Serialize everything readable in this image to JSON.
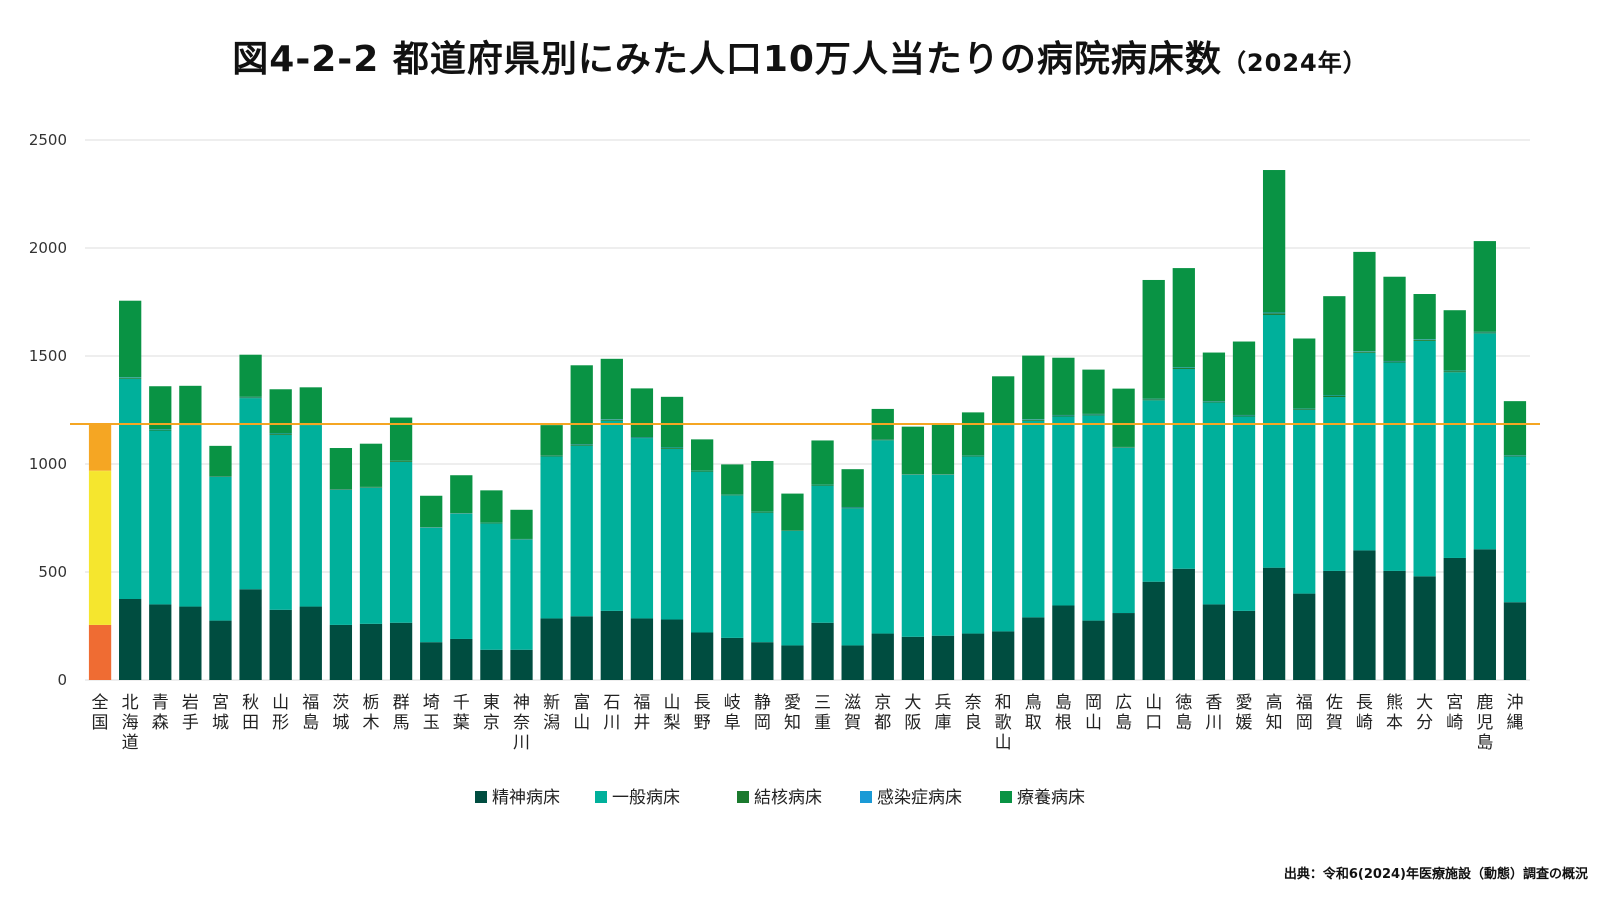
{
  "header": {
    "title": "図4-2-2 都道府県別にみた人口10万人当たりの病院病床数",
    "title_year": "（2024年）"
  },
  "footer": {
    "source": "出典：令和6(2024)年医療施設（動態）調査の概況"
  },
  "chart_data": {
    "type": "bar",
    "stacked": true,
    "ylim": [
      0,
      2500
    ],
    "yticks": [
      0,
      500,
      1000,
      1500,
      2000,
      2500
    ],
    "grid": true,
    "legend_position": "bottom",
    "reference_line": {
      "value": 1185,
      "color": "#f5a623"
    },
    "categories": [
      "全国",
      "北海道",
      "青森",
      "岩手",
      "宮城",
      "秋田",
      "山形",
      "福島",
      "茨城",
      "栃木",
      "群馬",
      "埼玉",
      "千葉",
      "東京",
      "神奈川",
      "新潟",
      "富山",
      "石川",
      "福井",
      "山梨",
      "長野",
      "岐阜",
      "静岡",
      "愛知",
      "三重",
      "滋賀",
      "京都",
      "大阪",
      "兵庫",
      "奈良",
      "和歌山",
      "鳥取",
      "島根",
      "岡山",
      "広島",
      "山口",
      "徳島",
      "香川",
      "愛媛",
      "高知",
      "福岡",
      "佐賀",
      "長崎",
      "熊本",
      "大分",
      "宮崎",
      "鹿児島",
      "沖縄"
    ],
    "series": [
      {
        "name": "精神病床",
        "color": "#004d40",
        "values": [
          255,
          375,
          350,
          340,
          275,
          420,
          325,
          340,
          255,
          260,
          265,
          175,
          190,
          140,
          140,
          285,
          295,
          320,
          285,
          280,
          220,
          195,
          175,
          160,
          265,
          160,
          215,
          200,
          205,
          215,
          225,
          290,
          345,
          275,
          310,
          455,
          515,
          350,
          320,
          520,
          400,
          505,
          600,
          505,
          480,
          565,
          605,
          360
        ]
      },
      {
        "name": "一般病床",
        "color": "#00b09b",
        "values": [
          710,
          1020,
          805,
          840,
          665,
          885,
          810,
          840,
          625,
          630,
          745,
          530,
          580,
          585,
          510,
          750,
          790,
          880,
          835,
          790,
          745,
          660,
          600,
          530,
          635,
          635,
          895,
          750,
          745,
          820,
          955,
          910,
          875,
          950,
          765,
          840,
          925,
          935,
          900,
          1170,
          850,
          805,
          915,
          965,
          1090,
          860,
          1000,
          675
        ]
      },
      {
        "name": "結核病床",
        "color": "#1b7a2e",
        "values": [
          3,
          4,
          3,
          5,
          3,
          4,
          4,
          3,
          3,
          3,
          4,
          2,
          2,
          2,
          2,
          4,
          5,
          5,
          3,
          4,
          3,
          2,
          3,
          2,
          3,
          4,
          4,
          2,
          2,
          3,
          4,
          5,
          5,
          5,
          3,
          5,
          5,
          4,
          5,
          8,
          4,
          5,
          5,
          5,
          5,
          5,
          5,
          4
        ]
      },
      {
        "name": "感染症病床",
        "color": "#1a9ad6",
        "values": [
          1,
          2,
          2,
          2,
          1,
          2,
          2,
          2,
          1,
          1,
          1,
          1,
          1,
          1,
          1,
          1,
          2,
          2,
          2,
          2,
          1,
          1,
          1,
          1,
          1,
          2,
          1,
          1,
          1,
          1,
          2,
          2,
          2,
          2,
          1,
          2,
          2,
          2,
          2,
          3,
          2,
          2,
          2,
          2,
          2,
          2,
          2,
          2
        ]
      },
      {
        "name": "療養病床",
        "color": "#099344",
        "values": [
          220,
          355,
          200,
          175,
          140,
          195,
          205,
          170,
          190,
          200,
          200,
          145,
          175,
          150,
          135,
          140,
          365,
          280,
          225,
          235,
          145,
          140,
          235,
          170,
          205,
          175,
          140,
          220,
          230,
          200,
          220,
          295,
          265,
          205,
          270,
          550,
          460,
          225,
          340,
          660,
          325,
          460,
          460,
          390,
          210,
          280,
          420,
          250
        ]
      }
    ],
    "first_bar_colors": [
      "#ef6c33",
      "#f5e62e",
      "#f5a623"
    ]
  }
}
